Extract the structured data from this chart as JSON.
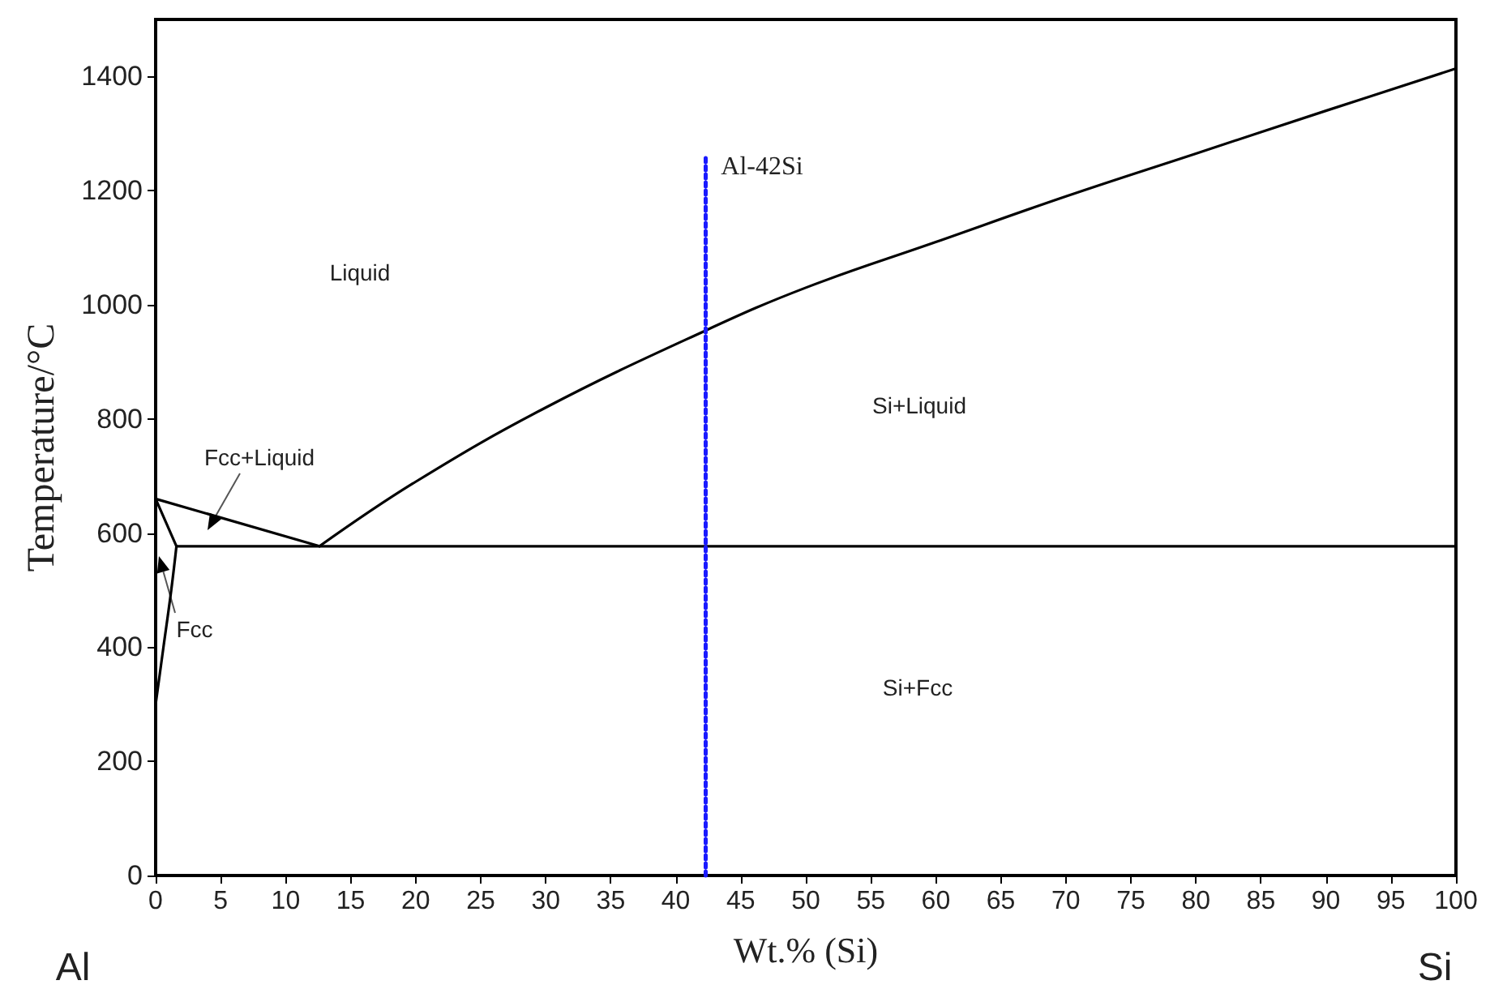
{
  "chart_data": {
    "type": "line",
    "xlabel": "Wt.% (Si)",
    "ylabel": "Temperature/°C",
    "xlim": [
      0,
      100
    ],
    "xticks": [
      0,
      5,
      10,
      15,
      20,
      25,
      30,
      35,
      40,
      45,
      50,
      55,
      60,
      65,
      70,
      75,
      80,
      85,
      90,
      95,
      100
    ],
    "ylim": [
      0,
      1500
    ],
    "yticks": [
      0,
      200,
      400,
      600,
      800,
      1000,
      1200,
      1400
    ],
    "grid": false,
    "marker": "none",
    "series": [
      {
        "color": "#000000",
        "x": [
          0,
          12.6
        ],
        "values": [
          660,
          577
        ]
      },
      {
        "color": "#000000",
        "x": [
          12.6,
          20,
          30,
          42.3,
          50,
          60,
          70,
          80,
          90,
          100
        ],
        "values": [
          577,
          690,
          820,
          955,
          1030,
          1110,
          1190,
          1265,
          1340,
          1414
        ]
      },
      {
        "color": "#000000",
        "x": [
          1.6,
          100
        ],
        "values": [
          577,
          577
        ]
      },
      {
        "color": "#000000",
        "x": [
          0,
          1.6
        ],
        "values": [
          660,
          577
        ]
      },
      {
        "color": "#000000",
        "x": [
          1.6,
          1.2,
          0.6,
          0
        ],
        "values": [
          577,
          500,
          400,
          300
        ]
      },
      {
        "color": "#1a1aff",
        "line_style": "dotted",
        "x": [
          42.3,
          42.3
        ],
        "values": [
          0,
          1260
        ]
      }
    ],
    "annotations": [
      "Al-42Si",
      "Liquid",
      "Fcc+Liquid",
      "Si+Liquid",
      "Si+Fcc",
      "Fcc",
      "Al",
      "Si"
    ]
  }
}
